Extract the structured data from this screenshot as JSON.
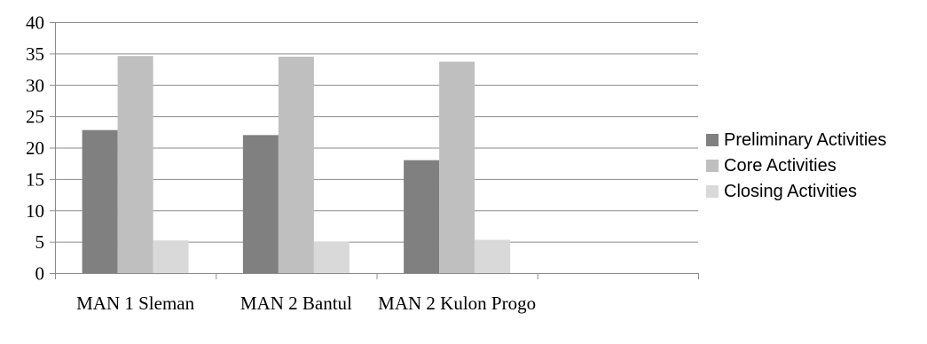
{
  "chart_data": {
    "type": "bar",
    "title": "",
    "xlabel": "",
    "ylabel": "",
    "ylim": [
      0,
      40
    ],
    "yticks": [
      "0",
      "5",
      "10",
      "15",
      "20",
      "25",
      "30",
      "35",
      "40"
    ],
    "grid": "horizontal",
    "legend_position": "right",
    "categories": [
      "MAN 1 Sleman",
      "MAN 2 Bantul",
      "MAN 2 Kulon Progo",
      ""
    ],
    "series": [
      {
        "name": "Preliminary Activities",
        "color": "#808080",
        "values": [
          22.8,
          22.0,
          18.0,
          null
        ]
      },
      {
        "name": "Core Activities",
        "color": "#bfbfbf",
        "values": [
          34.6,
          34.5,
          33.7,
          null
        ]
      },
      {
        "name": "Closing Activities",
        "color": "#d9d9d9",
        "values": [
          5.2,
          5.0,
          5.3,
          null
        ]
      }
    ]
  }
}
